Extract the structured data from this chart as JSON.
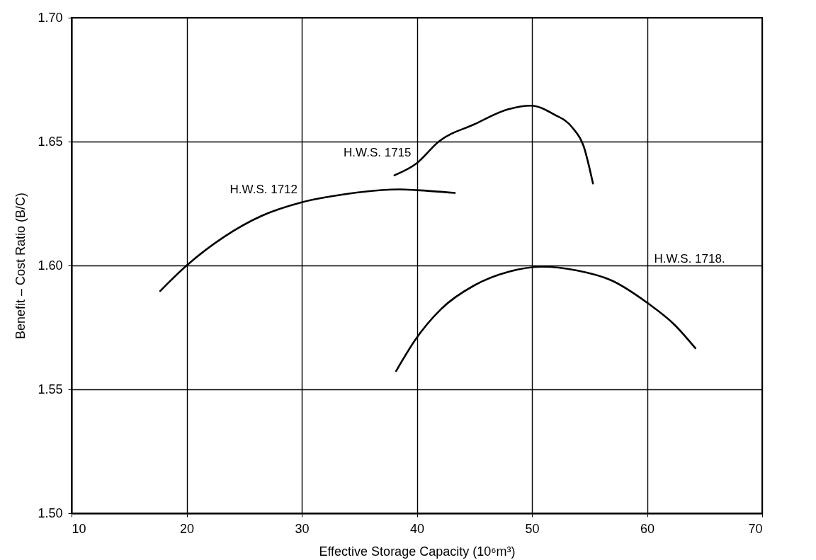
{
  "chart_data": {
    "type": "line",
    "xlabel": "Effective Storage Capacity (10⁶m³)",
    "ylabel": "Benefit – Cost Ratio (B/C)",
    "xlim": [
      10,
      70
    ],
    "xticks": [
      10,
      20,
      30,
      40,
      50,
      60,
      70
    ],
    "ylim": [
      1.5,
      1.7
    ],
    "yticks": [
      {
        "value": 1.5,
        "label": "1.50"
      },
      1.55,
      {
        "value": 1.6,
        "label": "1.60"
      },
      1.65,
      {
        "value": 1.7,
        "label": "1.70"
      }
    ],
    "grid": true,
    "legend": false,
    "marker": "none",
    "line_style": "solid",
    "series": [
      {
        "name": "H.W.S. 1712",
        "color": "#000000",
        "x": [
          17.7,
          20,
          23.2,
          26.5,
          30,
          34.1,
          38.5,
          40,
          43.3
        ],
        "values": [
          1.5897,
          1.6,
          1.6114,
          1.62,
          1.6255,
          1.629,
          1.6307,
          1.6304,
          1.6293
        ]
      },
      {
        "name": "H.W.S. 1715",
        "color": "#000000",
        "x": [
          38.05,
          40,
          41.9,
          45,
          47.9,
          49.9,
          51.9,
          53.5,
          54.5,
          55.3
        ],
        "values": [
          1.6364,
          1.6413,
          1.65,
          1.657,
          1.663,
          1.6645,
          1.661,
          1.6557,
          1.648,
          1.6331
        ]
      },
      {
        "name": "H.W.S. 1718.",
        "color": "#000000",
        "x": [
          38.2,
          39.8,
          42.1,
          45,
          48,
          50.9,
          53.9,
          56.9,
          60,
          62.4,
          64.2
        ],
        "values": [
          1.5574,
          1.5696,
          1.5824,
          1.592,
          1.5975,
          1.5995,
          1.598,
          1.594,
          1.585,
          1.576,
          1.5666
        ]
      }
    ]
  }
}
